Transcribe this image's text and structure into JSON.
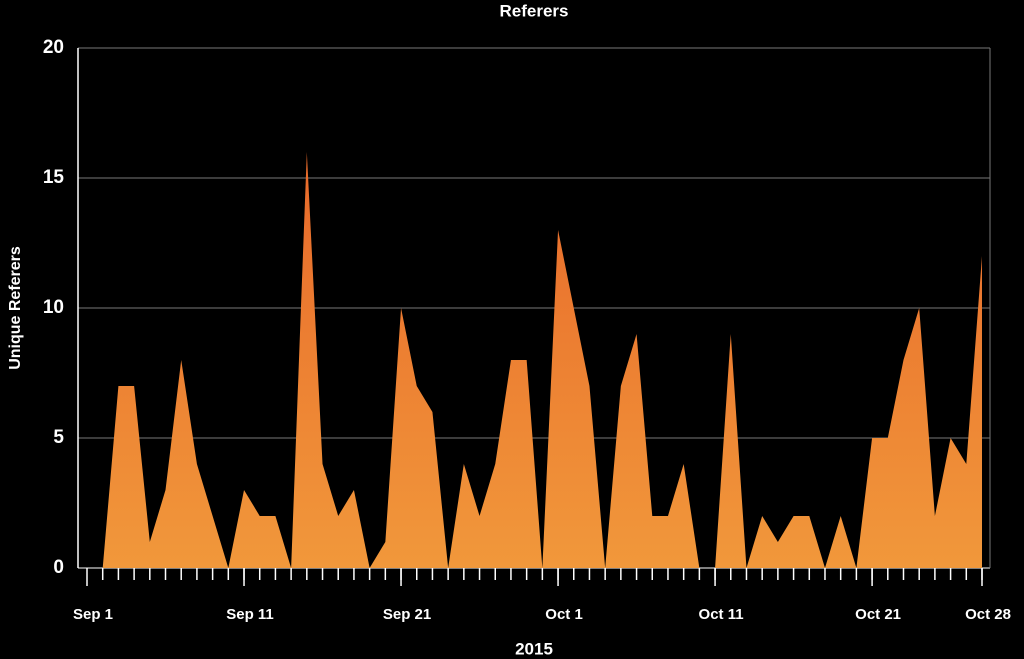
{
  "chart_data": {
    "type": "area",
    "title": "Referers",
    "xlabel": "2015",
    "ylabel": "Unique Referers",
    "x": [
      "Sep 2",
      "Sep 3",
      "Sep 4",
      "Sep 5",
      "Sep 6",
      "Sep 7",
      "Sep 8",
      "Sep 9",
      "Sep 10",
      "Sep 11",
      "Sep 12",
      "Sep 13",
      "Sep 14",
      "Sep 15",
      "Sep 16",
      "Sep 17",
      "Sep 18",
      "Sep 19",
      "Sep 20",
      "Sep 21",
      "Sep 22",
      "Sep 23",
      "Sep 24",
      "Sep 25",
      "Sep 26",
      "Sep 27",
      "Sep 28",
      "Sep 29",
      "Sep 30",
      "Oct 1",
      "Oct 2",
      "Oct 3",
      "Oct 4",
      "Oct 5",
      "Oct 6",
      "Oct 7",
      "Oct 8",
      "Oct 9",
      "Oct 10",
      "Oct 11",
      "Oct 12",
      "Oct 13",
      "Oct 14",
      "Oct 15",
      "Oct 16",
      "Oct 17",
      "Oct 18",
      "Oct 19",
      "Oct 20",
      "Oct 21",
      "Oct 22",
      "Oct 23",
      "Oct 24",
      "Oct 25",
      "Oct 26",
      "Oct 27",
      "Oct 28"
    ],
    "values": [
      0,
      7,
      7,
      1,
      3,
      8,
      4,
      2,
      0,
      3,
      2,
      2,
      0,
      16,
      4,
      2,
      3,
      0,
      1,
      10,
      7,
      6,
      0,
      4,
      2,
      4,
      8,
      8,
      0,
      13,
      10,
      7,
      0,
      7,
      9,
      2,
      2,
      4,
      0,
      0,
      9,
      0,
      2,
      1,
      2,
      2,
      0,
      2,
      0,
      5,
      5,
      8,
      10,
      2,
      5,
      4,
      12
    ],
    "color_top": "#e8692a",
    "color_bottom": "#f1983b",
    "xlim": [
      "Sep 1",
      "Oct 28"
    ],
    "xticks": [
      "Sep 1",
      "Sep 11",
      "Sep 21",
      "Oct 1",
      "Oct 11",
      "Oct 21",
      "Oct 28"
    ],
    "ylim": [
      0,
      20
    ],
    "yticks": [
      0,
      5,
      10,
      15,
      20
    ],
    "grid": true
  }
}
